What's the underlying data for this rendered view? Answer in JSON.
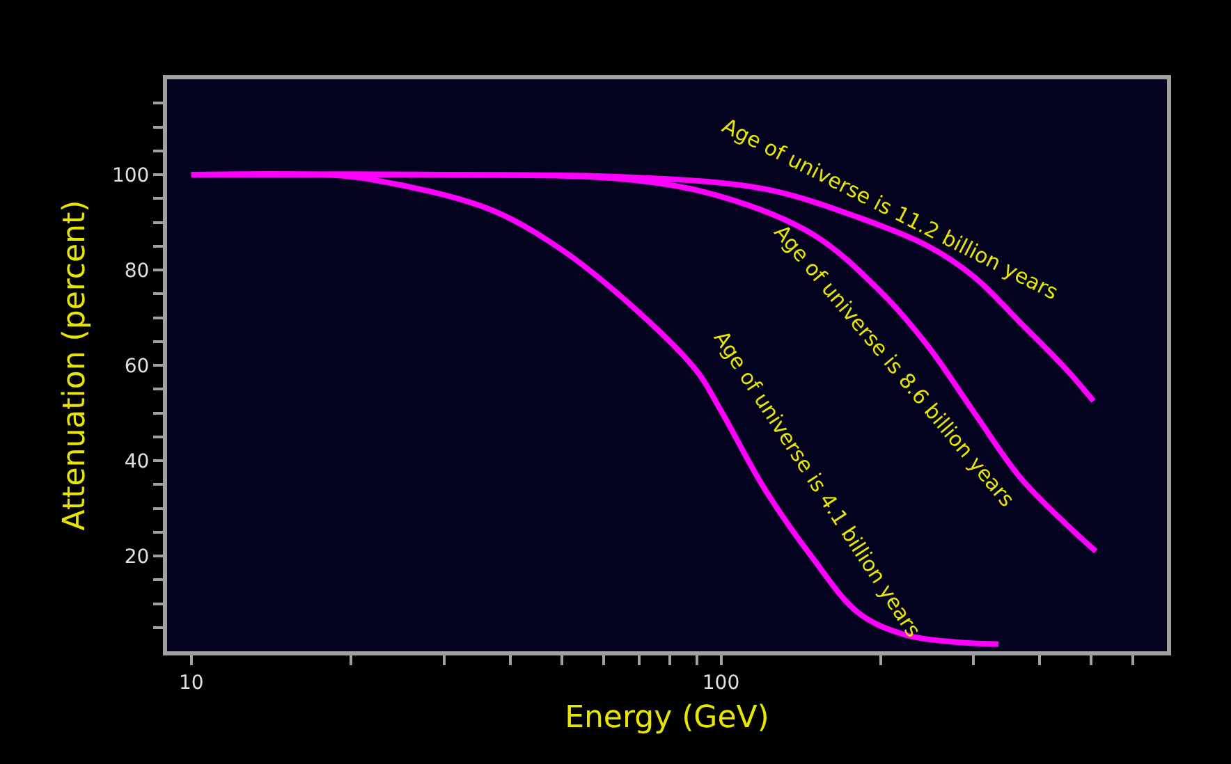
{
  "chart_data": {
    "type": "line",
    "xlabel": "Energy (GeV)",
    "ylabel": "Attenuation (percent)",
    "log": "x",
    "grid": false,
    "legend": false,
    "marker": "none",
    "line_style": "solid",
    "xlim": [
      9,
      695
    ],
    "ylim": [
      0,
      120
    ],
    "xticks": [
      10,
      {
        "value": 20,
        "label": null
      },
      {
        "value": 30,
        "label": null
      },
      {
        "value": 40,
        "label": null
      },
      {
        "value": 50,
        "label": null
      },
      {
        "value": 60,
        "label": null
      },
      {
        "value": 70,
        "label": null
      },
      {
        "value": 80,
        "label": null
      },
      {
        "value": 90,
        "label": null
      },
      100,
      {
        "value": 200,
        "label": null
      },
      {
        "value": 300,
        "label": null
      },
      {
        "value": 400,
        "label": null
      },
      {
        "value": 500,
        "label": null
      },
      {
        "value": 600,
        "label": null
      }
    ],
    "yticks": [
      {
        "value": 5,
        "label": null
      },
      {
        "value": 10,
        "label": null
      },
      {
        "value": 15,
        "label": null
      },
      20,
      {
        "value": 25,
        "label": null
      },
      {
        "value": 30,
        "label": null
      },
      {
        "value": 35,
        "label": null
      },
      40,
      {
        "value": 45,
        "label": null
      },
      {
        "value": 50,
        "label": null
      },
      {
        "value": 55,
        "label": null
      },
      60,
      {
        "value": 65,
        "label": null
      },
      {
        "value": 70,
        "label": null
      },
      {
        "value": 75,
        "label": null
      },
      80,
      {
        "value": 85,
        "label": null
      },
      {
        "value": 90,
        "label": null
      },
      {
        "value": 95,
        "label": null
      },
      100,
      {
        "value": 105,
        "label": null
      },
      {
        "value": 110,
        "label": null
      },
      {
        "value": 115,
        "label": null
      }
    ],
    "series": [
      {
        "name": "Age of universe is 4.1 billion years",
        "color": "#ff00ff",
        "x": [
          10,
          17.5,
          21.8,
          36.1,
          48.9,
          66.2,
          89.7,
          99.4,
          121,
          148,
          182,
          222,
          272,
          334
        ],
        "values": [
          100,
          100,
          99,
          93,
          85,
          73.5,
          59,
          51,
          34,
          20,
          8,
          3.5,
          2,
          1.5
        ]
      },
      {
        "name": "Age of universe is 8.6 billion years",
        "color": "#ff00ff",
        "x": [
          10,
          30,
          66.2,
          99.4,
          149,
          200,
          246,
          301,
          367,
          450,
          510
        ],
        "values": [
          100,
          100,
          99,
          95.5,
          87.5,
          75.5,
          64,
          50,
          36.5,
          26.5,
          21
        ]
      },
      {
        "name": "Age of universe is 11.2 billion years",
        "color": "#ff00ff",
        "x": [
          10,
          26.7,
          66.2,
          121,
          182,
          246,
          301,
          367,
          450,
          505
        ],
        "values": [
          100,
          100,
          99.5,
          97,
          91,
          85,
          78.5,
          69,
          59,
          52.5
        ]
      }
    ]
  }
}
